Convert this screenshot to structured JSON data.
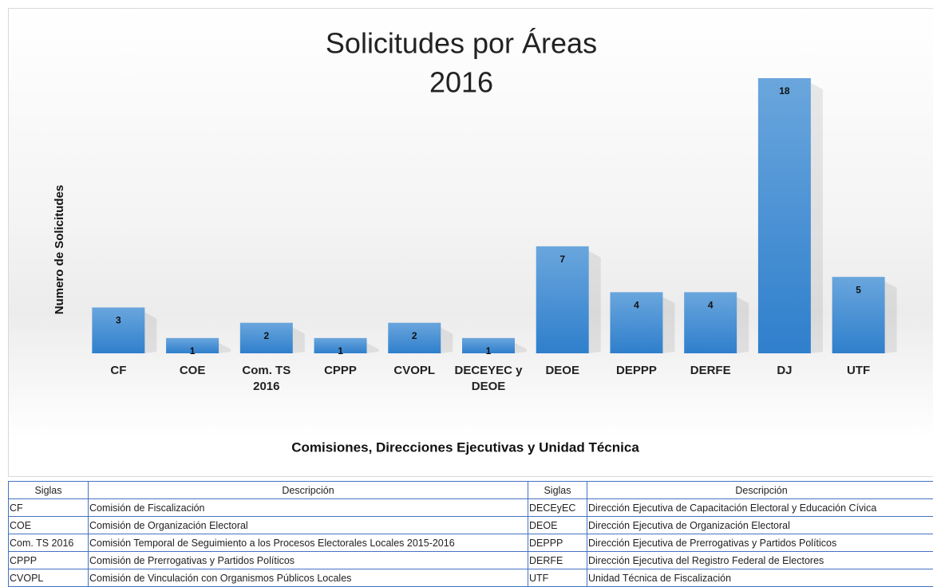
{
  "chart_data": {
    "type": "bar",
    "title": "Solicitudes por Áreas",
    "subtitle": "2016",
    "y_label": "Numero de Solicitudes",
    "x_label": "Comisiones, Direcciones Ejecutivas y Unidad Técnica",
    "categories": [
      "CF",
      "COE",
      "Com. TS 2016",
      "CPPP",
      "CVOPL",
      "DECEYEC y DEOE",
      "DEOE",
      "DEPPP",
      "DERFE",
      "DJ",
      "UTF"
    ],
    "values": [
      3,
      1,
      2,
      1,
      2,
      1,
      7,
      4,
      4,
      18,
      5
    ],
    "color": "#4a90d4",
    "ylim": [
      0,
      18
    ]
  },
  "table": {
    "header": [
      "Siglas",
      "Descripción",
      "Siglas",
      "Descripción"
    ],
    "rows": [
      [
        "CF",
        "Comisión de Fiscalización",
        "DECEyEC",
        "Dirección Ejecutiva de Capacitación Electoral y Educación Cívica"
      ],
      [
        "COE",
        "Comisión de Organización Electoral",
        "DEOE",
        "Dirección Ejecutiva de Organización Electoral"
      ],
      [
        "Com. TS 2016",
        "Comisión Temporal de Seguimiento a los Procesos Electorales Locales 2015-2016",
        "DEPPP",
        "Dirección Ejecutiva de Prerrogativas y Partidos Políticos"
      ],
      [
        "CPPP",
        "Comisión de Prerrogativas y Partidos Políticos",
        "DERFE",
        "Dirección Ejecutiva del Registro Federal de Electores"
      ],
      [
        "CVOPL",
        "Comisión de Vinculación con Organismos Públicos Locales",
        "UTF",
        "Unidad Técnica de Fiscalización"
      ]
    ]
  }
}
